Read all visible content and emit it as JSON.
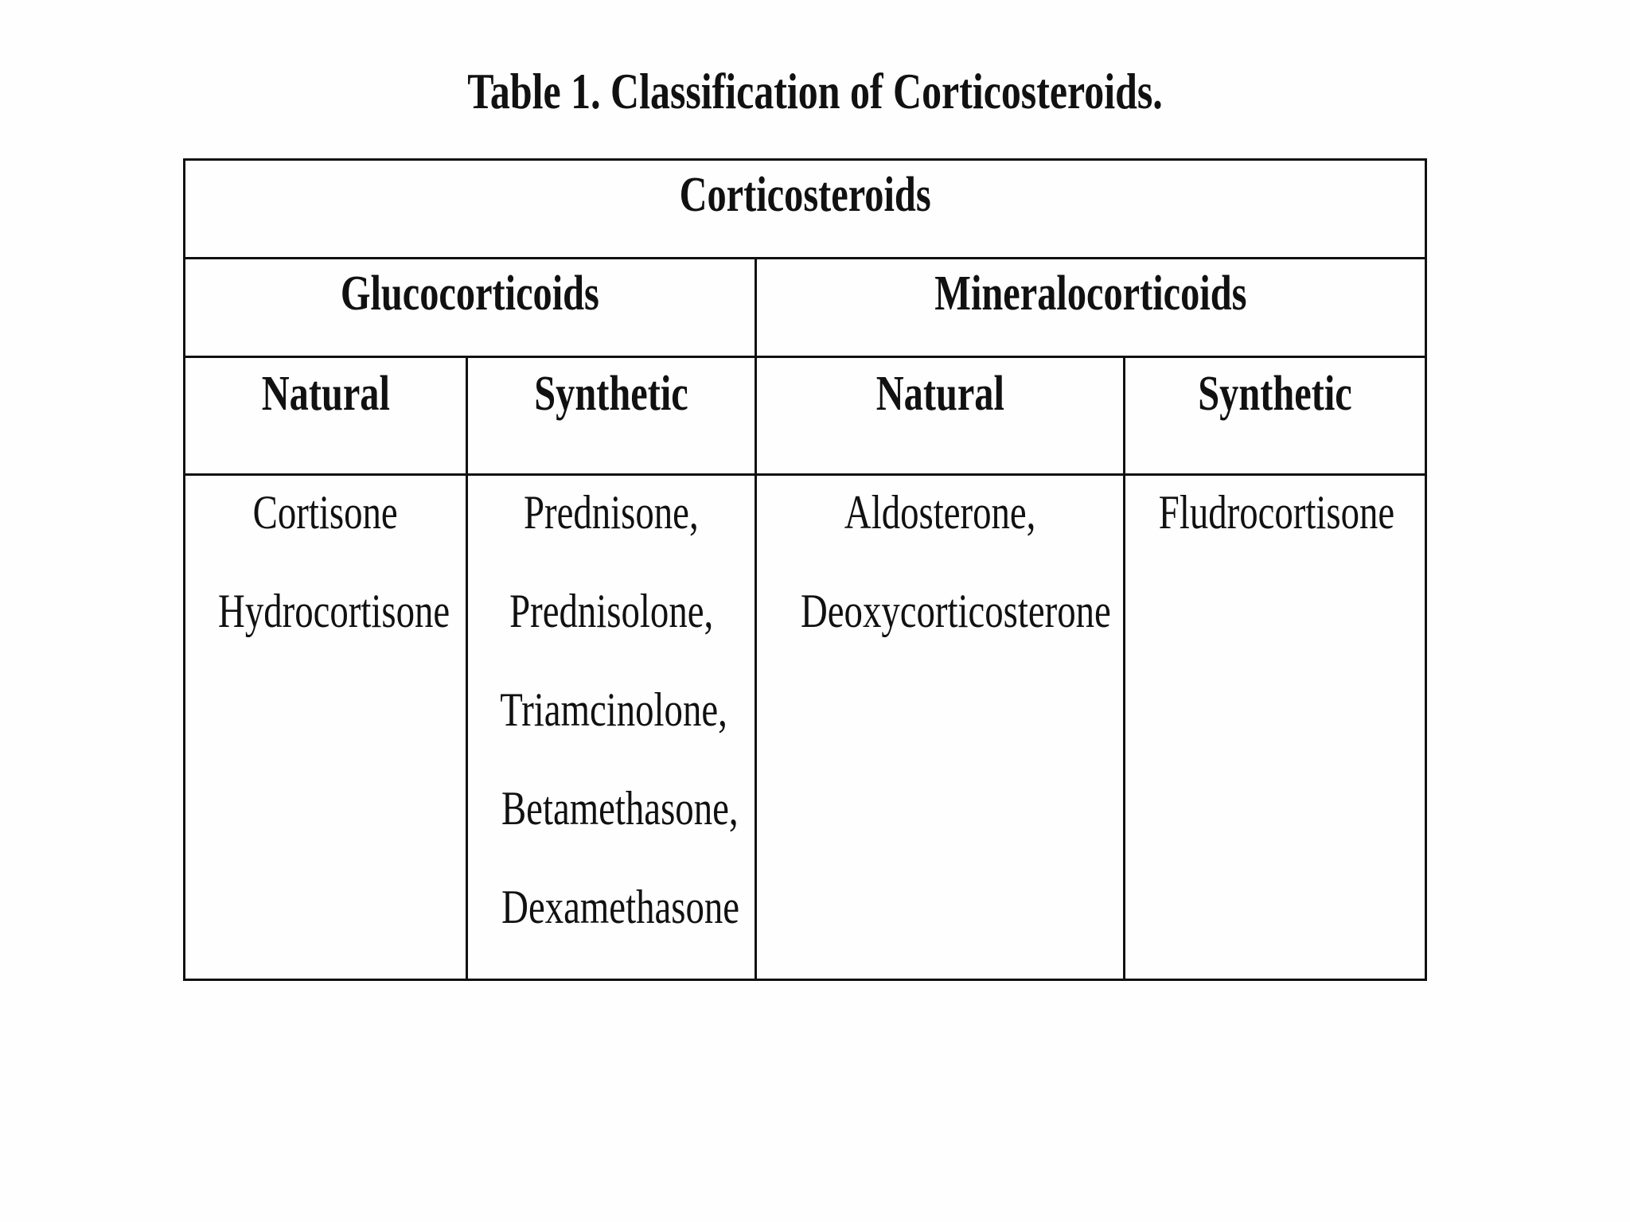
{
  "title": "Table 1. Classification of Corticosteroids.",
  "table": {
    "root": "Corticosteroids",
    "groups": [
      "Glucocorticoids",
      "Mineralocorticoids"
    ],
    "subheaders": [
      "Natural",
      "Synthetic",
      "Natural",
      "Synthetic"
    ],
    "columns": [
      [
        "Cortisone",
        "Hydrocortisone"
      ],
      [
        "Prednisone,",
        "Prednisolone,",
        "Triamcinolone,",
        "Betamethasone,",
        "Dexamethasone"
      ],
      [
        "Aldosterone,",
        "Deoxycorticosterone"
      ],
      [
        "Fludrocortisone"
      ]
    ]
  }
}
